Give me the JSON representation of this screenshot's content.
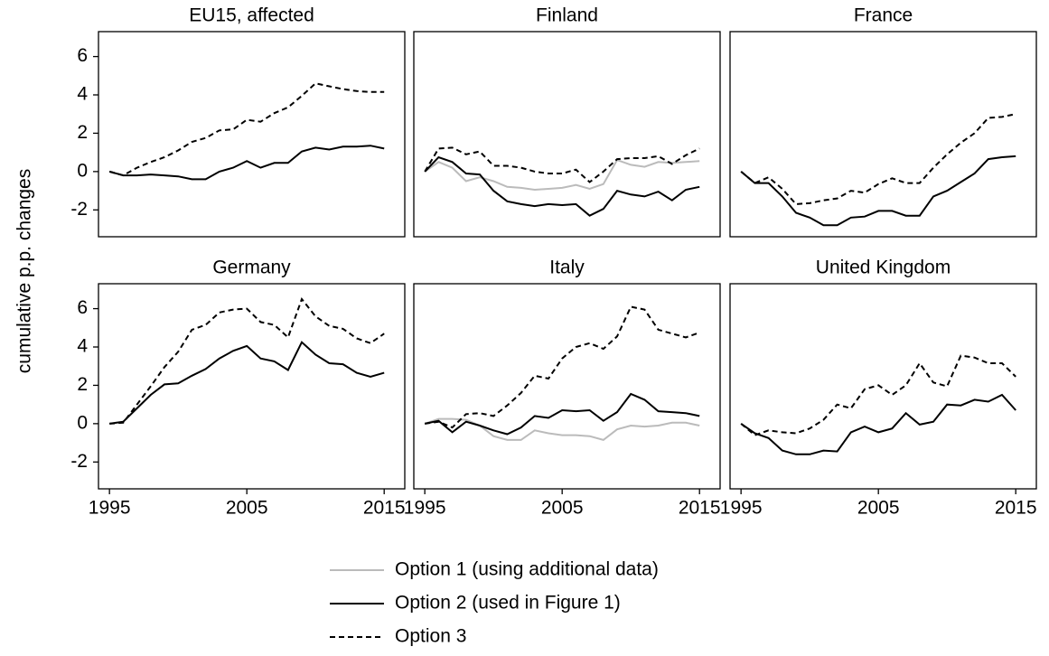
{
  "axes": {
    "ylabel": "cumulative p.p. changes",
    "xlim": [
      1994.2,
      2016.5
    ],
    "ylim": [
      -3.4,
      7.3
    ],
    "xticks": [
      1995,
      2005,
      2015
    ],
    "yticks": [
      -2,
      0,
      2,
      4,
      6
    ]
  },
  "chart_data": [
    {
      "type": "line",
      "title": "EU15, affected",
      "x": [
        1995,
        1996,
        1997,
        1998,
        1999,
        2000,
        2001,
        2002,
        2003,
        2004,
        2005,
        2006,
        2007,
        2008,
        2009,
        2010,
        2011,
        2012,
        2013,
        2014,
        2015
      ],
      "series": [
        {
          "name": "Option 2 (used in Figure 1)",
          "color": "#000000",
          "style": "solid",
          "values": [
            0,
            -0.2,
            -0.2,
            -0.15,
            -0.2,
            -0.25,
            -0.4,
            -0.4,
            0,
            0.2,
            0.55,
            0.2,
            0.45,
            0.45,
            1.05,
            1.25,
            1.15,
            1.3,
            1.3,
            1.35,
            1.2
          ]
        },
        {
          "name": "Option 3",
          "color": "#000000",
          "style": "dashed",
          "values": [
            0,
            -0.2,
            0.2,
            0.5,
            0.75,
            1.1,
            1.55,
            1.75,
            2.15,
            2.2,
            2.7,
            2.6,
            3.05,
            3.35,
            3.95,
            4.6,
            4.45,
            4.3,
            4.2,
            4.15,
            4.15
          ]
        }
      ]
    },
    {
      "type": "line",
      "title": "Finland",
      "x": [
        1995,
        1996,
        1997,
        1998,
        1999,
        2000,
        2001,
        2002,
        2003,
        2004,
        2005,
        2006,
        2007,
        2008,
        2009,
        2010,
        2011,
        2012,
        2013,
        2014,
        2015
      ],
      "series": [
        {
          "name": "Option 1 (using additional data)",
          "color": "#bbbbbb",
          "style": "solid",
          "values": [
            0,
            0.5,
            0.2,
            -0.5,
            -0.3,
            -0.5,
            -0.8,
            -0.85,
            -0.95,
            -0.9,
            -0.85,
            -0.7,
            -0.9,
            -0.65,
            0.6,
            0.35,
            0.25,
            0.5,
            0.45,
            0.5,
            0.55
          ]
        },
        {
          "name": "Option 2 (used in Figure 1)",
          "color": "#000000",
          "style": "solid",
          "values": [
            0,
            0.75,
            0.5,
            -0.1,
            -0.15,
            -1.0,
            -1.55,
            -1.7,
            -1.8,
            -1.7,
            -1.75,
            -1.7,
            -2.3,
            -1.95,
            -1.0,
            -1.2,
            -1.3,
            -1.05,
            -1.5,
            -0.95,
            -0.8
          ]
        },
        {
          "name": "Option 3",
          "color": "#000000",
          "style": "dashed",
          "values": [
            0,
            1.2,
            1.25,
            0.9,
            1.05,
            0.3,
            0.3,
            0.2,
            0.0,
            -0.1,
            -0.1,
            0.1,
            -0.55,
            0.0,
            0.65,
            0.7,
            0.7,
            0.8,
            0.4,
            0.85,
            1.2
          ]
        }
      ]
    },
    {
      "type": "line",
      "title": "France",
      "x": [
        1995,
        1996,
        1997,
        1998,
        1999,
        2000,
        2001,
        2002,
        2003,
        2004,
        2005,
        2006,
        2007,
        2008,
        2009,
        2010,
        2011,
        2012,
        2013,
        2014,
        2015
      ],
      "series": [
        {
          "name": "Option 2 (used in Figure 1)",
          "color": "#000000",
          "style": "solid",
          "values": [
            0,
            -0.6,
            -0.6,
            -1.3,
            -2.15,
            -2.4,
            -2.8,
            -2.8,
            -2.4,
            -2.35,
            -2.05,
            -2.05,
            -2.3,
            -2.3,
            -1.3,
            -1.0,
            -0.55,
            -0.1,
            0.65,
            0.75,
            0.8
          ]
        },
        {
          "name": "Option 3",
          "color": "#000000",
          "style": "dashed",
          "values": [
            0,
            -0.6,
            -0.3,
            -0.9,
            -1.7,
            -1.65,
            -1.5,
            -1.4,
            -1.0,
            -1.1,
            -0.65,
            -0.35,
            -0.6,
            -0.6,
            0.2,
            0.9,
            1.5,
            2.0,
            2.8,
            2.85,
            3.0
          ]
        }
      ]
    },
    {
      "type": "line",
      "title": "Germany",
      "x": [
        1995,
        1996,
        1997,
        1998,
        1999,
        2000,
        2001,
        2002,
        2003,
        2004,
        2005,
        2006,
        2007,
        2008,
        2009,
        2010,
        2011,
        2012,
        2013,
        2014,
        2015
      ],
      "series": [
        {
          "name": "Option 2 (used in Figure 1)",
          "color": "#000000",
          "style": "solid",
          "values": [
            0,
            0.1,
            0.8,
            1.5,
            2.05,
            2.1,
            2.5,
            2.85,
            3.4,
            3.8,
            4.05,
            3.4,
            3.25,
            2.8,
            4.25,
            3.6,
            3.15,
            3.1,
            2.65,
            2.45,
            2.65
          ]
        },
        {
          "name": "Option 3",
          "color": "#000000",
          "style": "dashed",
          "values": [
            0,
            0.05,
            1.0,
            1.95,
            2.95,
            3.75,
            4.9,
            5.15,
            5.8,
            5.95,
            6.0,
            5.3,
            5.15,
            4.5,
            6.5,
            5.6,
            5.1,
            4.95,
            4.45,
            4.2,
            4.7
          ]
        }
      ]
    },
    {
      "type": "line",
      "title": "Italy",
      "x": [
        1995,
        1996,
        1997,
        1998,
        1999,
        2000,
        2001,
        2002,
        2003,
        2004,
        2005,
        2006,
        2007,
        2008,
        2009,
        2010,
        2011,
        2012,
        2013,
        2014,
        2015
      ],
      "series": [
        {
          "name": "Option 1 (using additional data)",
          "color": "#bbbbbb",
          "style": "solid",
          "values": [
            0,
            0.25,
            0.25,
            0.2,
            -0.1,
            -0.65,
            -0.85,
            -0.85,
            -0.35,
            -0.5,
            -0.6,
            -0.6,
            -0.65,
            -0.85,
            -0.3,
            -0.1,
            -0.15,
            -0.1,
            0.05,
            0.05,
            -0.1
          ]
        },
        {
          "name": "Option 2 (used in Figure 1)",
          "color": "#000000",
          "style": "solid",
          "values": [
            0,
            0.15,
            -0.45,
            0.1,
            -0.1,
            -0.35,
            -0.55,
            -0.2,
            0.4,
            0.3,
            0.7,
            0.65,
            0.7,
            0.15,
            0.6,
            1.55,
            1.25,
            0.65,
            0.6,
            0.55,
            0.4
          ]
        },
        {
          "name": "Option 3",
          "color": "#000000",
          "style": "dashed",
          "values": [
            0,
            0.1,
            -0.2,
            0.5,
            0.55,
            0.4,
            0.95,
            1.6,
            2.5,
            2.35,
            3.4,
            4.0,
            4.2,
            3.9,
            4.55,
            6.1,
            5.95,
            4.9,
            4.7,
            4.5,
            4.75
          ]
        }
      ]
    },
    {
      "type": "line",
      "title": "United Kingdom",
      "x": [
        1995,
        1996,
        1997,
        1998,
        1999,
        2000,
        2001,
        2002,
        2003,
        2004,
        2005,
        2006,
        2007,
        2008,
        2009,
        2010,
        2011,
        2012,
        2013,
        2014,
        2015
      ],
      "series": [
        {
          "name": "Option 2 (used in Figure 1)",
          "color": "#000000",
          "style": "solid",
          "values": [
            0,
            -0.5,
            -0.75,
            -1.4,
            -1.6,
            -1.6,
            -1.4,
            -1.45,
            -0.45,
            -0.15,
            -0.45,
            -0.25,
            0.55,
            -0.05,
            0.1,
            1.0,
            0.95,
            1.25,
            1.15,
            1.5,
            0.7
          ]
        },
        {
          "name": "Option 3",
          "color": "#000000",
          "style": "dashed",
          "values": [
            0,
            -0.6,
            -0.35,
            -0.45,
            -0.5,
            -0.25,
            0.2,
            1.0,
            0.8,
            1.8,
            2.0,
            1.5,
            2.0,
            3.15,
            2.15,
            1.95,
            3.55,
            3.45,
            3.15,
            3.15,
            2.45
          ]
        }
      ]
    }
  ]
}
